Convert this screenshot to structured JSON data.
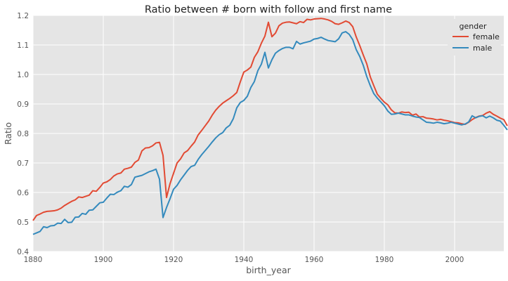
{
  "chart_data": {
    "type": "line",
    "title": "Ratio between # born with follow and first name",
    "xlabel": "birth_year",
    "ylabel": "Ratio",
    "xlim": [
      1880,
      2014
    ],
    "ylim": [
      0.4,
      1.2
    ],
    "grid": true,
    "x_ticks": [
      "1880",
      "1900",
      "1920",
      "1940",
      "1960",
      "1980",
      "2000"
    ],
    "y_ticks": [
      "0.4",
      "0.5",
      "0.6",
      "0.7",
      "0.8",
      "0.9",
      "1.0",
      "1.1",
      "1.2"
    ],
    "legend": {
      "title": "gender",
      "position": "top-right"
    },
    "x_start": 1880,
    "series": [
      {
        "name": "female",
        "color": "#e24a33",
        "values": [
          0.505,
          0.522,
          0.527,
          0.533,
          0.536,
          0.537,
          0.538,
          0.541,
          0.547,
          0.556,
          0.563,
          0.57,
          0.575,
          0.585,
          0.583,
          0.587,
          0.591,
          0.606,
          0.604,
          0.617,
          0.632,
          0.636,
          0.644,
          0.656,
          0.663,
          0.666,
          0.679,
          0.682,
          0.686,
          0.702,
          0.71,
          0.741,
          0.751,
          0.752,
          0.758,
          0.768,
          0.77,
          0.726,
          0.583,
          0.63,
          0.665,
          0.7,
          0.714,
          0.734,
          0.742,
          0.757,
          0.771,
          0.795,
          0.81,
          0.826,
          0.842,
          0.862,
          0.879,
          0.892,
          0.903,
          0.911,
          0.919,
          0.928,
          0.939,
          0.975,
          1.008,
          1.015,
          1.025,
          1.058,
          1.077,
          1.106,
          1.13,
          1.177,
          1.128,
          1.14,
          1.165,
          1.174,
          1.177,
          1.178,
          1.175,
          1.172,
          1.179,
          1.176,
          1.187,
          1.185,
          1.188,
          1.189,
          1.19,
          1.188,
          1.185,
          1.18,
          1.172,
          1.17,
          1.175,
          1.181,
          1.176,
          1.162,
          1.127,
          1.098,
          1.066,
          1.036,
          0.992,
          0.962,
          0.933,
          0.919,
          0.906,
          0.897,
          0.88,
          0.87,
          0.869,
          0.873,
          0.871,
          0.872,
          0.862,
          0.866,
          0.856,
          0.857,
          0.852,
          0.851,
          0.849,
          0.846,
          0.848,
          0.845,
          0.843,
          0.84,
          0.837,
          0.836,
          0.833,
          0.831,
          0.838,
          0.847,
          0.854,
          0.859,
          0.861,
          0.869,
          0.874,
          0.865,
          0.859,
          0.852,
          0.847,
          0.826
        ]
      },
      {
        "name": "male",
        "color": "#348abd",
        "values": [
          0.458,
          0.463,
          0.468,
          0.484,
          0.481,
          0.487,
          0.488,
          0.496,
          0.495,
          0.509,
          0.498,
          0.499,
          0.516,
          0.517,
          0.529,
          0.526,
          0.54,
          0.541,
          0.553,
          0.565,
          0.567,
          0.581,
          0.594,
          0.593,
          0.601,
          0.606,
          0.621,
          0.618,
          0.627,
          0.652,
          0.655,
          0.658,
          0.664,
          0.67,
          0.674,
          0.679,
          0.645,
          0.515,
          0.549,
          0.579,
          0.611,
          0.624,
          0.643,
          0.659,
          0.675,
          0.688,
          0.692,
          0.712,
          0.728,
          0.742,
          0.756,
          0.771,
          0.785,
          0.796,
          0.803,
          0.819,
          0.828,
          0.85,
          0.887,
          0.905,
          0.912,
          0.926,
          0.956,
          0.976,
          1.013,
          1.035,
          1.075,
          1.022,
          1.05,
          1.072,
          1.081,
          1.088,
          1.092,
          1.092,
          1.087,
          1.112,
          1.103,
          1.107,
          1.11,
          1.113,
          1.12,
          1.122,
          1.126,
          1.12,
          1.115,
          1.113,
          1.111,
          1.121,
          1.141,
          1.145,
          1.136,
          1.118,
          1.084,
          1.061,
          1.031,
          0.993,
          0.962,
          0.935,
          0.92,
          0.907,
          0.894,
          0.876,
          0.865,
          0.866,
          0.869,
          0.866,
          0.863,
          0.863,
          0.859,
          0.856,
          0.854,
          0.846,
          0.838,
          0.837,
          0.835,
          0.838,
          0.836,
          0.833,
          0.835,
          0.838,
          0.835,
          0.832,
          0.829,
          0.832,
          0.839,
          0.86,
          0.853,
          0.858,
          0.86,
          0.853,
          0.859,
          0.853,
          0.845,
          0.842,
          0.828,
          0.812
        ]
      }
    ]
  }
}
